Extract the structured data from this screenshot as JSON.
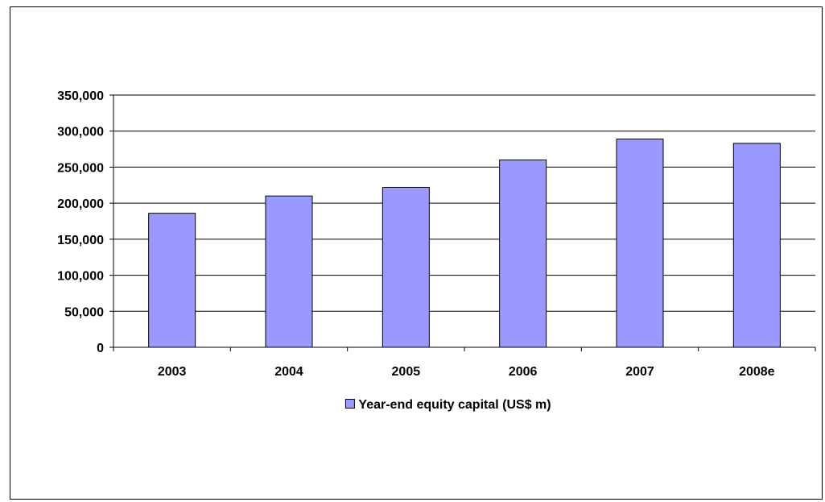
{
  "chart_data": {
    "type": "bar",
    "categories": [
      "2003",
      "2004",
      "2005",
      "2006",
      "2007",
      "2008e"
    ],
    "series": [
      {
        "name": "Year-end equity capital (US$ m)",
        "values": [
          186000,
          210000,
          222000,
          260000,
          289000,
          283000
        ],
        "color": "#9999ff"
      }
    ],
    "title": "",
    "xlabel": "",
    "ylabel": "",
    "ylim": [
      0,
      350000
    ],
    "yticks": [
      0,
      50000,
      100000,
      150000,
      200000,
      250000,
      300000,
      350000
    ],
    "ytick_labels": [
      "0",
      "50,000",
      "100,000",
      "150,000",
      "200,000",
      "250,000",
      "300,000",
      "350,000"
    ],
    "grid": true,
    "legend": "bottom-center",
    "bar_border_color": "#000000",
    "axis_color": "#000000"
  }
}
